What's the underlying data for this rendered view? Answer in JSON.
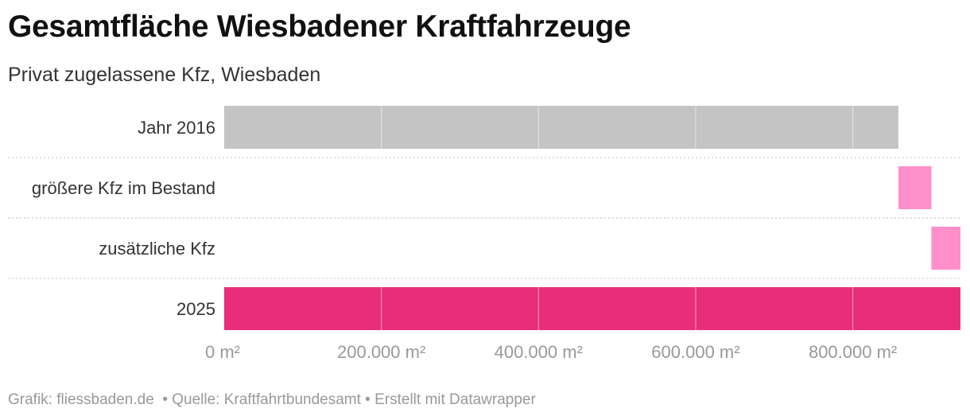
{
  "header": {
    "title": "Gesamtfläche Wiesbadener Kraftfahrzeuge",
    "subtitle": "Privat zugelassene Kfz, Wiesbaden"
  },
  "chart_data": {
    "type": "bar",
    "orientation": "horizontal",
    "subtype": "waterfall",
    "categories": [
      "Jahr 2016",
      "größere Kfz im Bestand",
      "zusätzliche Kfz",
      "2025"
    ],
    "bars": [
      {
        "label": "Jahr 2016",
        "start": 0,
        "end": 858000,
        "color": "#c4c4c4"
      },
      {
        "label": "größere Kfz im Bestand",
        "start": 858000,
        "end": 900000,
        "color": "#ff8fcb"
      },
      {
        "label": "zusätzliche Kfz",
        "start": 900000,
        "end": 937000,
        "color": "#ff8fcb"
      },
      {
        "label": "2025",
        "start": 0,
        "end": 937000,
        "color": "#e82e78"
      }
    ],
    "xlim": [
      0,
      937000
    ],
    "xticks": [
      0,
      200000,
      400000,
      600000,
      800000
    ],
    "xtick_labels": [
      "0 m²",
      "200.000 m²",
      "400.000 m²",
      "600.000 m²",
      "800.000 m²"
    ],
    "unit": "m²"
  },
  "footer": {
    "credit": "Grafik: fliessbaden.de ",
    "source": " • Quelle: Kraftfahrtbundesamt",
    "made_with": " • Erstellt mit Datawrapper"
  }
}
